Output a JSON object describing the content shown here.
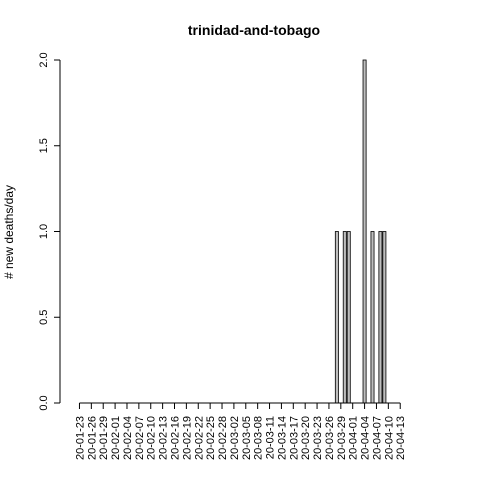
{
  "chart_data": {
    "type": "bar",
    "title": "trinidad-and-tobago",
    "xlabel": "",
    "ylabel": "# new deaths/day",
    "ylim": [
      0,
      2
    ],
    "yticks": [
      0.0,
      0.5,
      1.0,
      1.5,
      2.0
    ],
    "ytick_labels": [
      "0.0",
      "0.5",
      "1.0",
      "1.5",
      "2.0"
    ],
    "x_tick_labels": [
      "20-01-23",
      "20-01-26",
      "20-01-29",
      "20-02-01",
      "20-02-04",
      "20-02-07",
      "20-02-10",
      "20-02-13",
      "20-02-16",
      "20-02-19",
      "20-02-22",
      "20-02-25",
      "20-02-28",
      "20-03-02",
      "20-03-05",
      "20-03-08",
      "20-03-11",
      "20-03-14",
      "20-03-17",
      "20-03-20",
      "20-03-23",
      "20-03-26",
      "20-03-29",
      "20-04-01",
      "20-04-04",
      "20-04-07",
      "20-04-10",
      "20-04-13"
    ],
    "first_date": "2020-01-22",
    "values": [
      0,
      0,
      0,
      0,
      0,
      0,
      0,
      0,
      0,
      0,
      0,
      0,
      0,
      0,
      0,
      0,
      0,
      0,
      0,
      0,
      0,
      0,
      0,
      0,
      0,
      0,
      0,
      0,
      0,
      0,
      0,
      0,
      0,
      0,
      0,
      0,
      0,
      0,
      0,
      0,
      0,
      0,
      0,
      0,
      0,
      0,
      0,
      0,
      0,
      0,
      0,
      0,
      0,
      0,
      0,
      0,
      0,
      0,
      0,
      0,
      0,
      0,
      0,
      0,
      0,
      0,
      1,
      0,
      1,
      1,
      0,
      0,
      0,
      2,
      0,
      1,
      0,
      1,
      1,
      0,
      0,
      0,
      0,
      0,
      0,
      0,
      0,
      0,
      0,
      0
    ],
    "bar_color": "#bebebe",
    "grid": false
  }
}
